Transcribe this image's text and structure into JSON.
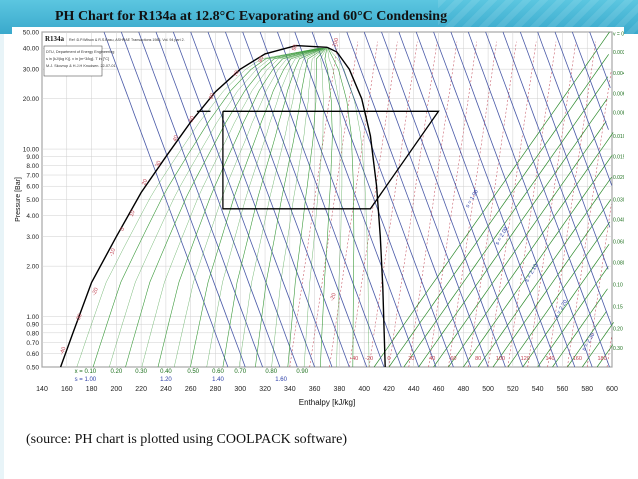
{
  "slide": {
    "title": "PH Chart for R134a at 12.8°C Evaporating and 60°C Condensing",
    "caption": "(source: PH chart is plotted using COOLPACK software)"
  },
  "colors": {
    "header_bg": "#45b3d4",
    "saturation_dome": "#000000",
    "cycle": "#000000",
    "isotherm": "#4a5aa8",
    "isentrope": "#2e8b2e",
    "isochore": "#c04050",
    "quality": "#3b9a3b"
  },
  "chart_data": {
    "type": "line",
    "refrigerant": "R134a",
    "header_lines": [
      "R134a  Ref :D.P.Wilson & R.S.Basu, ASHRAE Transactions 1988, Vol. 94 part 2.",
      "DTU, Department of Energy Engineering",
      "s in [kJ/(kg K)]. v in [m^3/kg]. T in [°C]",
      "M.J. Skovrup & H.J.H Knudsen. 22-07-01"
    ],
    "xlabel": "Enthalpy [kJ/kg]",
    "ylabel": "Pressure [Bar]",
    "x_scale": "linear",
    "y_scale": "log",
    "xlim": [
      140,
      600
    ],
    "ylim": [
      0.5,
      50
    ],
    "x_ticks": [
      140,
      160,
      180,
      200,
      220,
      240,
      260,
      280,
      300,
      320,
      340,
      360,
      380,
      400,
      420,
      440,
      460,
      480,
      500,
      520,
      540,
      560,
      580,
      600
    ],
    "y_ticks": [
      {
        "value": 0.5,
        "label": "0.50"
      },
      {
        "value": 0.6,
        "label": "0.60"
      },
      {
        "value": 0.7,
        "label": "0.70"
      },
      {
        "value": 0.8,
        "label": "0.80"
      },
      {
        "value": 0.9,
        "label": "0.90"
      },
      {
        "value": 1.0,
        "label": "1.00"
      },
      {
        "value": 2.0,
        "label": "2.00"
      },
      {
        "value": 3.0,
        "label": "3.00"
      },
      {
        "value": 4.0,
        "label": "4.00"
      },
      {
        "value": 5.0,
        "label": "5.00"
      },
      {
        "value": 6.0,
        "label": "6.00"
      },
      {
        "value": 7.0,
        "label": "7.00"
      },
      {
        "value": 8.0,
        "label": "8.00"
      },
      {
        "value": 9.0,
        "label": "9.00"
      },
      {
        "value": 10.0,
        "label": "10.00"
      },
      {
        "value": 20.0,
        "label": "20.00"
      },
      {
        "value": 30.0,
        "label": "30.00"
      },
      {
        "value": 40.0,
        "label": "40.00"
      },
      {
        "value": 50.0,
        "label": "50.00"
      }
    ],
    "saturated_liquid": [
      [
        155,
        0.5
      ],
      [
        165,
        0.8
      ],
      [
        180,
        1.6
      ],
      [
        200,
        3.0
      ],
      [
        220,
        5.5
      ],
      [
        240,
        9.0
      ],
      [
        260,
        14.5
      ],
      [
        280,
        22.0
      ],
      [
        300,
        30.0
      ],
      [
        320,
        37.0
      ],
      [
        345,
        41.5
      ],
      [
        370,
        40.5
      ]
    ],
    "saturated_vapor": [
      [
        370,
        40.5
      ],
      [
        378,
        38.0
      ],
      [
        388,
        30.0
      ],
      [
        398,
        20.0
      ],
      [
        405,
        12.0
      ],
      [
        410,
        6.0
      ],
      [
        413,
        3.0
      ],
      [
        415,
        1.5
      ],
      [
        417,
        0.5
      ]
    ],
    "cycle": [
      [
        286,
        16.8
      ],
      [
        286,
        4.4
      ],
      [
        405,
        4.4
      ],
      [
        460,
        16.8
      ],
      [
        286,
        16.8
      ]
    ],
    "cycle_extra": [
      [
        265,
        16.8
      ],
      [
        276,
        16.8
      ]
    ],
    "quality_labels": [
      {
        "h": 175,
        "label": "x = 0.10"
      },
      {
        "h": 200,
        "label": "0.20"
      },
      {
        "h": 220,
        "label": "0.30"
      },
      {
        "h": 240,
        "label": "0.40"
      },
      {
        "h": 262,
        "label": "0.50"
      },
      {
        "h": 282,
        "label": "0.60"
      },
      {
        "h": 300,
        "label": "0.70"
      },
      {
        "h": 325,
        "label": "0.80"
      },
      {
        "h": 350,
        "label": "0.90"
      }
    ],
    "entropy_labels": [
      {
        "h": 175,
        "label": "s = 1.00"
      },
      {
        "h": 240,
        "label": "1.20"
      },
      {
        "h": 282,
        "label": "1.40"
      },
      {
        "h": 333,
        "label": "1.60"
      }
    ],
    "isotherm_labels": [
      {
        "h": 158,
        "p": 0.62,
        "label": "-40"
      },
      {
        "h": 171,
        "p": 0.98,
        "label": "-30"
      },
      {
        "h": 184,
        "p": 1.4,
        "label": "-20"
      },
      {
        "h": 198,
        "p": 2.4,
        "label": "-10"
      },
      {
        "h": 206,
        "p": 3.3,
        "label": "0"
      },
      {
        "h": 214,
        "p": 4.1,
        "label": "10"
      },
      {
        "h": 224,
        "p": 6.3,
        "label": "20"
      },
      {
        "h": 235,
        "p": 8.1,
        "label": "30"
      },
      {
        "h": 249,
        "p": 11.5,
        "label": "40"
      },
      {
        "h": 262,
        "p": 15.0,
        "label": "50"
      },
      {
        "h": 278,
        "p": 20.5,
        "label": "60"
      },
      {
        "h": 298,
        "p": 28.0,
        "label": "70"
      },
      {
        "h": 318,
        "p": 34.0,
        "label": "80"
      },
      {
        "h": 345,
        "p": 40.0,
        "label": "90"
      },
      {
        "h": 378,
        "p": 43.0,
        "label": "100"
      },
      {
        "h": 376,
        "p": 1.3,
        "label": "-20"
      },
      {
        "h": 392,
        "p": 0.55,
        "label": "-40"
      },
      {
        "h": 404,
        "p": 0.55,
        "label": "-20"
      },
      {
        "h": 420,
        "p": 0.55,
        "label": "0"
      },
      {
        "h": 438,
        "p": 0.55,
        "label": "20"
      },
      {
        "h": 455,
        "p": 0.55,
        "label": "40"
      },
      {
        "h": 472,
        "p": 0.55,
        "label": "60"
      },
      {
        "h": 492,
        "p": 0.55,
        "label": "80"
      },
      {
        "h": 510,
        "p": 0.55,
        "label": "100"
      },
      {
        "h": 530,
        "p": 0.55,
        "label": "120"
      },
      {
        "h": 550,
        "p": 0.55,
        "label": "140"
      },
      {
        "h": 572,
        "p": 0.55,
        "label": "160"
      },
      {
        "h": 592,
        "p": 0.55,
        "label": "180"
      }
    ],
    "volume_labels": [
      {
        "p": 49.0,
        "label": "v = 0.0020"
      },
      {
        "p": 38.0,
        "label": "0.0030"
      },
      {
        "p": 28.5,
        "label": "0.0040"
      },
      {
        "p": 21.5,
        "label": "0.0060"
      },
      {
        "p": 16.5,
        "label": "0.0080"
      },
      {
        "p": 12.0,
        "label": "0.010"
      },
      {
        "p": 9.0,
        "label": "0.015"
      },
      {
        "p": 6.8,
        "label": "0.020"
      },
      {
        "p": 5.0,
        "label": "0.030"
      },
      {
        "p": 3.8,
        "label": "0.040"
      },
      {
        "p": 2.8,
        "label": "0.060"
      },
      {
        "p": 2.1,
        "label": "0.080"
      },
      {
        "p": 1.55,
        "label": "0.10"
      },
      {
        "p": 1.15,
        "label": "0.15"
      },
      {
        "p": 0.85,
        "label": "0.20"
      },
      {
        "p": 0.65,
        "label": "0.30"
      }
    ],
    "right_entropy_labels": [
      {
        "h": 488,
        "p": 5.0,
        "label": "1.90"
      },
      {
        "h": 512,
        "p": 3.0,
        "label": "2.00"
      },
      {
        "h": 536,
        "p": 1.8,
        "label": "2.10"
      },
      {
        "h": 560,
        "p": 1.1,
        "label": "2.20"
      },
      {
        "h": 582,
        "p": 0.7,
        "label": "2.30"
      }
    ]
  }
}
